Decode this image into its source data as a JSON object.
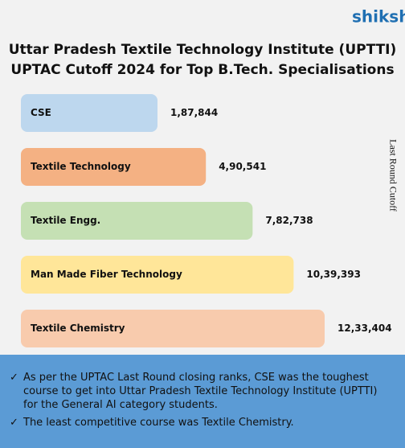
{
  "brand": "shiksha",
  "chart_data": {
    "type": "bar",
    "orientation": "horizontal",
    "title": [
      "Uttar Pradesh Textile Technology Institute (UPTTI)",
      "UPTAC Cutoff 2024 for Top B.Tech. Specialisations"
    ],
    "axis_label": "Last Round Cutoff",
    "categories": [
      "CSE",
      "Textile Technology",
      "Textile Engg.",
      "Man Made Fiber Technology",
      "Textile Chemistry"
    ],
    "values": [
      187844,
      490541,
      782738,
      1039393,
      1233404
    ],
    "value_labels": [
      "1,87,844",
      "4,90,541",
      "7,82,738",
      "10,39,393",
      "12,33,404"
    ],
    "colors": [
      "#bdd7ee",
      "#f4b183",
      "#c5e0b4",
      "#ffe699",
      "#f8cbad"
    ]
  },
  "notes": [
    "As per the UPTAC Last Round closing ranks, CSE was the toughest course to get into Uttar Pradesh Textile Technology Institute (UPTTI) for the General AI category students.",
    "The least competitive course was Textile Chemistry."
  ]
}
